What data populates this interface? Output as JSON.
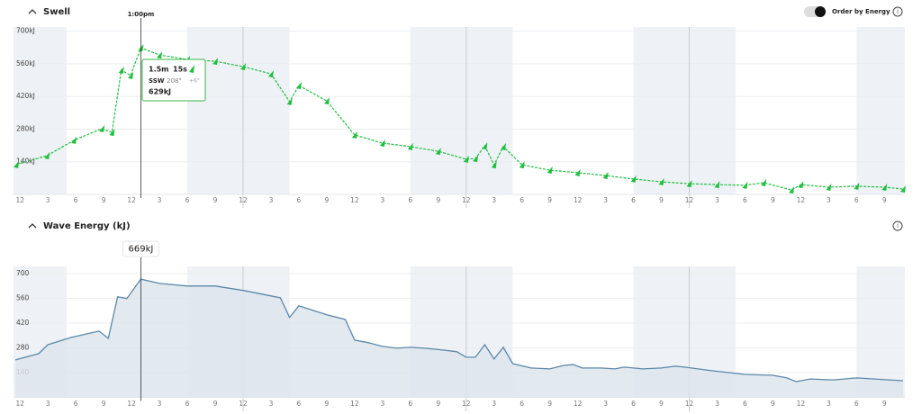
{
  "header": {
    "title": "Swell",
    "toggle_label": "Order by Energy"
  },
  "tooltip": {
    "height": "1.5m",
    "period": "15s",
    "direction": "SSW",
    "degrees": "208°",
    "change": "+6°",
    "energy": "629kJ"
  },
  "section2": {
    "title": "Wave Energy (kJ)"
  },
  "chart_data": [
    {
      "type": "line",
      "cursor_label": "1:00pm",
      "color": "#1fbf3f",
      "grid": true,
      "x": [
        -0.4,
        2.9,
        5.8,
        8.8,
        9.9,
        10.9,
        11.9,
        13,
        15,
        18,
        21,
        24,
        27,
        29,
        30,
        33,
        36,
        39,
        42,
        45,
        48,
        49,
        50,
        51,
        52,
        54,
        57,
        60,
        63,
        66,
        69,
        72,
        75,
        78,
        80,
        83,
        84,
        87,
        90,
        93,
        95
      ],
      "values": [
        128,
        166,
        232,
        282,
        266,
        533,
        510,
        629,
        598,
        579,
        571,
        548,
        517,
        398,
        467,
        401,
        255,
        220,
        205,
        185,
        151,
        154,
        208,
        127,
        205,
        127,
        104,
        93,
        81,
        66,
        54,
        46,
        42,
        39,
        50,
        19,
        42,
        31,
        35,
        31,
        23
      ],
      "xlim": [
        -0.7,
        95.2
      ],
      "ylim": [
        0,
        718
      ],
      "yticks": [
        {
          "value": 700,
          "label": "700kJ"
        },
        {
          "value": 560,
          "label": "560kJ"
        },
        {
          "value": 420,
          "label": "420kJ"
        },
        {
          "value": 280,
          "label": "280kJ"
        },
        {
          "value": 140,
          "label": "140kJ"
        }
      ],
      "xticks": [
        {
          "value": 0,
          "label": "12"
        },
        {
          "value": 3,
          "label": "3"
        },
        {
          "value": 6,
          "label": "6"
        },
        {
          "value": 9,
          "label": "9"
        },
        {
          "value": 12,
          "label": "12"
        },
        {
          "value": 15,
          "label": "3"
        },
        {
          "value": 18,
          "label": "6"
        },
        {
          "value": 21,
          "label": "9"
        },
        {
          "value": 24,
          "label": "12"
        },
        {
          "value": 27,
          "label": "3"
        },
        {
          "value": 30,
          "label": "6"
        },
        {
          "value": 33,
          "label": "9"
        },
        {
          "value": 36,
          "label": "12"
        },
        {
          "value": 39,
          "label": "3"
        },
        {
          "value": 42,
          "label": "6"
        },
        {
          "value": 45,
          "label": "9"
        },
        {
          "value": 48,
          "label": "12"
        },
        {
          "value": 51,
          "label": "3"
        },
        {
          "value": 54,
          "label": "6"
        },
        {
          "value": 57,
          "label": "9"
        },
        {
          "value": 60,
          "label": "12"
        },
        {
          "value": 63,
          "label": "3"
        },
        {
          "value": 66,
          "label": "6"
        },
        {
          "value": 69,
          "label": "9"
        },
        {
          "value": 72,
          "label": "12"
        },
        {
          "value": 75,
          "label": "3"
        },
        {
          "value": 78,
          "label": "6"
        },
        {
          "value": 81,
          "label": "9"
        },
        {
          "value": 84,
          "label": "12"
        },
        {
          "value": 87,
          "label": "3"
        },
        {
          "value": 90,
          "label": "6"
        },
        {
          "value": 93,
          "label": "9"
        }
      ]
    },
    {
      "type": "area",
      "cursor_label": "1:00pm",
      "cursor_value": "669kJ",
      "color": "#5a88aa",
      "grid": true,
      "x": [
        -0.5,
        2,
        3,
        5.5,
        8.5,
        9.5,
        10.5,
        11.5,
        13,
        15,
        18,
        21,
        24,
        27,
        28,
        29,
        30,
        33,
        35,
        36,
        37.5,
        39,
        40.5,
        42,
        43.5,
        45.5,
        47,
        48,
        49,
        50,
        51,
        52,
        53,
        55,
        57,
        58.5,
        59.5,
        60.5,
        62.5,
        64,
        65,
        67,
        69,
        70.5,
        71.5,
        74.5,
        78,
        81,
        82.5,
        83.5,
        85,
        87.5,
        90,
        93.5,
        95
      ],
      "values": [
        212,
        247,
        298,
        339,
        375,
        334,
        569,
        559,
        669,
        645,
        630,
        630,
        605,
        574,
        564,
        452,
        518,
        467,
        441,
        324,
        309,
        288,
        278,
        283,
        278,
        268,
        258,
        227,
        227,
        298,
        217,
        283,
        191,
        166,
        161,
        181,
        186,
        166,
        166,
        161,
        171,
        161,
        166,
        176,
        171,
        150,
        130,
        125,
        110,
        89,
        104,
        99,
        110,
        99,
        94
      ],
      "xlim": [
        -0.7,
        95.2
      ],
      "ylim": [
        0,
        741
      ],
      "yticks": [
        700,
        560,
        420,
        280,
        140
      ],
      "xticks": [
        {
          "value": 0,
          "label": "12"
        },
        {
          "value": 3,
          "label": "3"
        },
        {
          "value": 6,
          "label": "6"
        },
        {
          "value": 9,
          "label": "9"
        },
        {
          "value": 12,
          "label": "12"
        },
        {
          "value": 15,
          "label": "3"
        },
        {
          "value": 18,
          "label": "6"
        },
        {
          "value": 21,
          "label": "9"
        },
        {
          "value": 24,
          "label": "12"
        },
        {
          "value": 27,
          "label": "3"
        },
        {
          "value": 30,
          "label": "6"
        },
        {
          "value": 33,
          "label": "9"
        },
        {
          "value": 36,
          "label": "12"
        },
        {
          "value": 39,
          "label": "3"
        },
        {
          "value": 42,
          "label": "6"
        },
        {
          "value": 45,
          "label": "9"
        },
        {
          "value": 48,
          "label": "12"
        },
        {
          "value": 51,
          "label": "3"
        },
        {
          "value": 54,
          "label": "6"
        },
        {
          "value": 57,
          "label": "9"
        },
        {
          "value": 60,
          "label": "12"
        },
        {
          "value": 63,
          "label": "3"
        },
        {
          "value": 66,
          "label": "6"
        },
        {
          "value": 69,
          "label": "9"
        },
        {
          "value": 72,
          "label": "12"
        },
        {
          "value": 75,
          "label": "3"
        },
        {
          "value": 78,
          "label": "6"
        },
        {
          "value": 81,
          "label": "9"
        },
        {
          "value": 84,
          "label": "12"
        },
        {
          "value": 87,
          "label": "3"
        },
        {
          "value": 90,
          "label": "6"
        },
        {
          "value": 93,
          "label": "9"
        }
      ]
    }
  ]
}
